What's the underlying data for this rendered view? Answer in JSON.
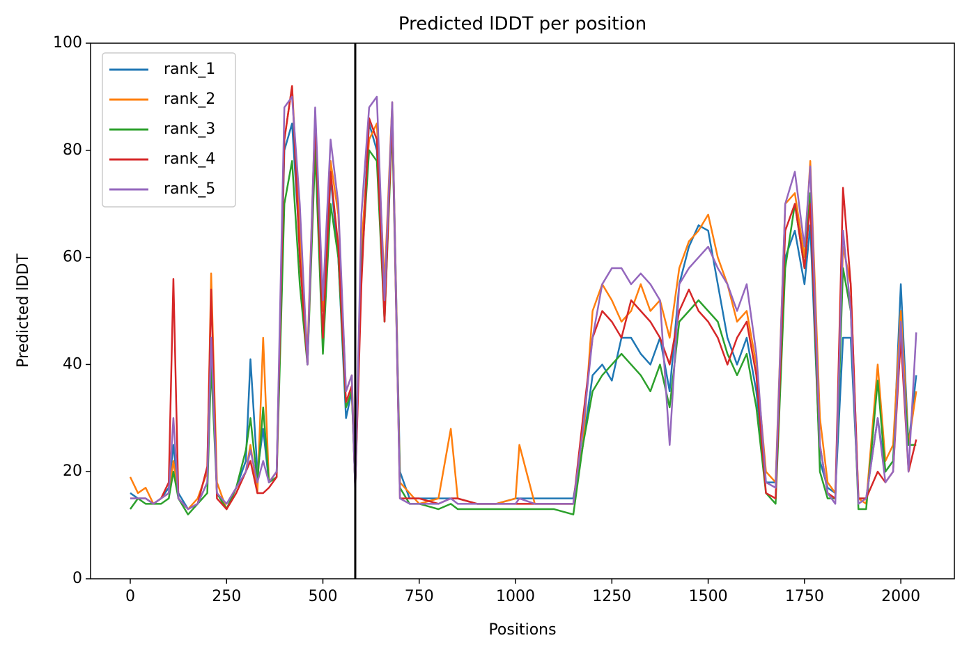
{
  "chart_data": {
    "type": "line",
    "title": "Predicted lDDT per position",
    "x_label": "Positions",
    "y_label": "Predicted lDDT",
    "xlim": [
      -103,
      2139
    ],
    "ylim": [
      0,
      100
    ],
    "xticks": [
      0,
      250,
      500,
      750,
      1000,
      1250,
      1500,
      1750,
      2000
    ],
    "yticks": [
      0,
      20,
      40,
      60,
      80,
      100
    ],
    "legend": "upper left",
    "vline": 584,
    "vline_color": "#000000",
    "x": [
      0,
      20,
      40,
      60,
      80,
      100,
      112,
      125,
      150,
      175,
      200,
      210,
      225,
      250,
      275,
      300,
      312,
      330,
      345,
      360,
      380,
      400,
      420,
      440,
      460,
      480,
      500,
      520,
      540,
      560,
      575,
      584,
      600,
      620,
      640,
      660,
      680,
      700,
      725,
      750,
      800,
      832,
      850,
      900,
      950,
      1000,
      1010,
      1050,
      1100,
      1150,
      1175,
      1200,
      1225,
      1250,
      1275,
      1300,
      1325,
      1350,
      1375,
      1400,
      1425,
      1450,
      1475,
      1500,
      1525,
      1550,
      1575,
      1600,
      1625,
      1650,
      1675,
      1700,
      1725,
      1750,
      1765,
      1790,
      1810,
      1830,
      1850,
      1870,
      1890,
      1910,
      1940,
      1960,
      1980,
      2000,
      2020,
      2040
    ],
    "series": [
      {
        "name": "rank_1",
        "color": "#1f77b4",
        "values": [
          16,
          15,
          15,
          14,
          15,
          17,
          25,
          16,
          13,
          14,
          18,
          45,
          16,
          13,
          17,
          22,
          41,
          20,
          28,
          18,
          20,
          80,
          85,
          62,
          40,
          85,
          45,
          75,
          60,
          30,
          35,
          17,
          60,
          85,
          80,
          50,
          88,
          20,
          15,
          15,
          15,
          15,
          15,
          14,
          14,
          15,
          15,
          15,
          15,
          15,
          25,
          38,
          40,
          37,
          45,
          45,
          42,
          40,
          45,
          35,
          55,
          62,
          66,
          65,
          55,
          45,
          40,
          45,
          35,
          18,
          18,
          60,
          65,
          55,
          66,
          22,
          17,
          16,
          45,
          45,
          15,
          15,
          30,
          20,
          22,
          55,
          25,
          38
        ]
      },
      {
        "name": "rank_2",
        "color": "#ff7f0e",
        "values": [
          19,
          16,
          17,
          14,
          15,
          16,
          22,
          15,
          13,
          15,
          20,
          57,
          18,
          13,
          16,
          20,
          25,
          16,
          45,
          18,
          20,
          82,
          92,
          65,
          42,
          87,
          50,
          78,
          68,
          35,
          38,
          18,
          62,
          82,
          85,
          55,
          89,
          18,
          16,
          14,
          15,
          28,
          15,
          14,
          14,
          15,
          25,
          14,
          14,
          14,
          25,
          50,
          55,
          52,
          48,
          50,
          55,
          50,
          52,
          45,
          58,
          63,
          65,
          68,
          60,
          55,
          48,
          50,
          40,
          20,
          18,
          70,
          72,
          60,
          78,
          30,
          18,
          16,
          62,
          55,
          15,
          14,
          40,
          22,
          25,
          50,
          25,
          35
        ]
      },
      {
        "name": "rank_3",
        "color": "#2ca02c",
        "values": [
          13,
          15,
          14,
          14,
          14,
          15,
          20,
          15,
          12,
          14,
          16,
          40,
          16,
          13,
          17,
          24,
          30,
          18,
          32,
          18,
          19,
          70,
          78,
          55,
          40,
          80,
          42,
          70,
          60,
          32,
          35,
          17,
          58,
          80,
          78,
          48,
          85,
          17,
          14,
          14,
          13,
          14,
          13,
          13,
          13,
          13,
          13,
          13,
          13,
          12,
          25,
          35,
          38,
          40,
          42,
          40,
          38,
          35,
          40,
          32,
          48,
          50,
          52,
          50,
          48,
          42,
          38,
          42,
          32,
          16,
          14,
          58,
          70,
          58,
          72,
          20,
          15,
          15,
          58,
          50,
          13,
          13,
          37,
          20,
          22,
          45,
          25,
          25
        ]
      },
      {
        "name": "rank_4",
        "color": "#d62728",
        "values": [
          15,
          15,
          15,
          14,
          15,
          18,
          56,
          15,
          13,
          14,
          21,
          54,
          15,
          13,
          16,
          20,
          22,
          16,
          16,
          17,
          19,
          82,
          92,
          60,
          40,
          86,
          45,
          76,
          62,
          33,
          36,
          17,
          55,
          86,
          82,
          48,
          87,
          15,
          15,
          15,
          14,
          15,
          15,
          14,
          14,
          14,
          14,
          14,
          14,
          14,
          30,
          45,
          50,
          48,
          45,
          52,
          50,
          48,
          45,
          40,
          50,
          54,
          50,
          48,
          45,
          40,
          45,
          48,
          38,
          16,
          15,
          65,
          70,
          58,
          70,
          25,
          16,
          15,
          73,
          55,
          15,
          15,
          20,
          18,
          20,
          45,
          20,
          26
        ]
      },
      {
        "name": "rank_5",
        "color": "#9467bd",
        "values": [
          15,
          15,
          15,
          14,
          15,
          16,
          30,
          15,
          13,
          14,
          18,
          45,
          16,
          14,
          17,
          20,
          24,
          18,
          22,
          18,
          20,
          88,
          90,
          70,
          40,
          88,
          52,
          82,
          70,
          35,
          38,
          16,
          68,
          88,
          90,
          52,
          89,
          15,
          14,
          14,
          14,
          15,
          14,
          14,
          14,
          14,
          15,
          14,
          14,
          14,
          28,
          45,
          55,
          58,
          58,
          55,
          57,
          55,
          52,
          25,
          55,
          58,
          60,
          62,
          58,
          55,
          50,
          55,
          42,
          18,
          17,
          70,
          76,
          62,
          77,
          25,
          16,
          14,
          65,
          50,
          14,
          15,
          30,
          18,
          20,
          48,
          20,
          46
        ]
      }
    ]
  }
}
